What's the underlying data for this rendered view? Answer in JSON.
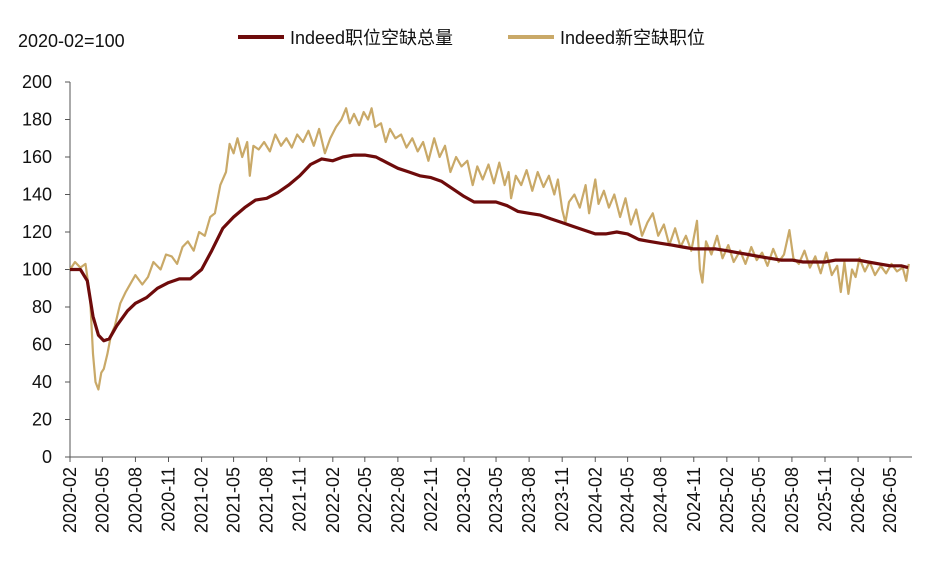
{
  "chart_data": {
    "type": "line",
    "note": "2020-02=100",
    "ylim": [
      0,
      200
    ],
    "yticks": [
      0,
      20,
      40,
      60,
      80,
      100,
      120,
      140,
      160,
      180,
      200
    ],
    "xlim": [
      "2020-02",
      "2026-07"
    ],
    "xtick_labels": [
      "2020-02",
      "2020-05",
      "2020-08",
      "2020-11",
      "2021-02",
      "2021-05",
      "2021-08",
      "2021-11",
      "2022-02",
      "2022-05",
      "2022-08",
      "2022-11",
      "2023-02",
      "2023-05",
      "2023-08",
      "2023-11",
      "2024-02",
      "2024-05",
      "2024-08",
      "2024-11",
      "2025-02",
      "2025-05",
      "2025-08",
      "2025-11",
      "2026-02",
      "2026-05"
    ],
    "grid": false,
    "legend_position": "top",
    "colors": {
      "total": "#6e0b0b",
      "new": "#c9a968"
    },
    "series": [
      {
        "name": "Indeed职位空缺总量",
        "color": "#6e0b0b",
        "points": [
          [
            "2020-02-01",
            100
          ],
          [
            "2020-03-01",
            100
          ],
          [
            "2020-03-20",
            94
          ],
          [
            "2020-04-05",
            75
          ],
          [
            "2020-04-20",
            65
          ],
          [
            "2020-05-05",
            62
          ],
          [
            "2020-05-20",
            63
          ],
          [
            "2020-06-10",
            70
          ],
          [
            "2020-07-10",
            78
          ],
          [
            "2020-08-01",
            82
          ],
          [
            "2020-09-01",
            85
          ],
          [
            "2020-10-01",
            90
          ],
          [
            "2020-11-01",
            93
          ],
          [
            "2020-12-01",
            95
          ],
          [
            "2021-01-01",
            95
          ],
          [
            "2021-02-01",
            100
          ],
          [
            "2021-03-01",
            110
          ],
          [
            "2021-04-01",
            122
          ],
          [
            "2021-05-01",
            128
          ],
          [
            "2021-06-01",
            133
          ],
          [
            "2021-07-01",
            137
          ],
          [
            "2021-08-01",
            138
          ],
          [
            "2021-09-01",
            141
          ],
          [
            "2021-10-01",
            145
          ],
          [
            "2021-11-01",
            150
          ],
          [
            "2021-12-01",
            156
          ],
          [
            "2022-01-01",
            159
          ],
          [
            "2022-02-01",
            158
          ],
          [
            "2022-03-01",
            160
          ],
          [
            "2022-04-01",
            161
          ],
          [
            "2022-05-01",
            161
          ],
          [
            "2022-06-01",
            160
          ],
          [
            "2022-07-01",
            157
          ],
          [
            "2022-08-01",
            154
          ],
          [
            "2022-09-01",
            152
          ],
          [
            "2022-10-01",
            150
          ],
          [
            "2022-11-01",
            149
          ],
          [
            "2022-12-01",
            147
          ],
          [
            "2023-01-01",
            143
          ],
          [
            "2023-02-01",
            139
          ],
          [
            "2023-03-01",
            136
          ],
          [
            "2023-04-01",
            136
          ],
          [
            "2023-05-01",
            136
          ],
          [
            "2023-06-01",
            134
          ],
          [
            "2023-07-01",
            131
          ],
          [
            "2023-08-01",
            130
          ],
          [
            "2023-09-01",
            129
          ],
          [
            "2023-10-01",
            127
          ],
          [
            "2023-11-01",
            125
          ],
          [
            "2023-12-01",
            123
          ],
          [
            "2024-01-01",
            121
          ],
          [
            "2024-02-01",
            119
          ],
          [
            "2024-03-01",
            119
          ],
          [
            "2024-04-01",
            120
          ],
          [
            "2024-05-01",
            119
          ],
          [
            "2024-06-01",
            116
          ],
          [
            "2024-07-01",
            115
          ],
          [
            "2024-08-01",
            114
          ],
          [
            "2024-09-01",
            113
          ],
          [
            "2024-10-01",
            112
          ],
          [
            "2024-11-01",
            111
          ],
          [
            "2024-12-01",
            111
          ],
          [
            "2025-01-01",
            111
          ],
          [
            "2025-02-01",
            110
          ],
          [
            "2025-03-01",
            109
          ],
          [
            "2025-04-01",
            108
          ],
          [
            "2025-05-01",
            107
          ],
          [
            "2025-06-01",
            106
          ],
          [
            "2025-07-01",
            105
          ],
          [
            "2025-08-01",
            105
          ],
          [
            "2025-09-01",
            104
          ],
          [
            "2025-10-01",
            104
          ],
          [
            "2025-11-01",
            104
          ],
          [
            "2025-12-01",
            105
          ],
          [
            "2026-01-01",
            105
          ],
          [
            "2026-02-01",
            105
          ],
          [
            "2026-03-01",
            104
          ],
          [
            "2026-04-01",
            103
          ],
          [
            "2026-05-01",
            102
          ],
          [
            "2026-06-01",
            102
          ],
          [
            "2026-06-20",
            101
          ]
        ]
      },
      {
        "name": "Indeed新空缺职位",
        "color": "#c9a968",
        "points": [
          [
            "2020-02-01",
            100
          ],
          [
            "2020-02-15",
            104
          ],
          [
            "2020-03-01",
            101
          ],
          [
            "2020-03-15",
            103
          ],
          [
            "2020-03-28",
            85
          ],
          [
            "2020-04-05",
            55
          ],
          [
            "2020-04-12",
            40
          ],
          [
            "2020-04-20",
            36
          ],
          [
            "2020-04-28",
            45
          ],
          [
            "2020-05-05",
            47
          ],
          [
            "2020-05-15",
            55
          ],
          [
            "2020-05-25",
            65
          ],
          [
            "2020-06-05",
            70
          ],
          [
            "2020-06-20",
            82
          ],
          [
            "2020-07-05",
            88
          ],
          [
            "2020-07-20",
            93
          ],
          [
            "2020-08-01",
            97
          ],
          [
            "2020-08-20",
            92
          ],
          [
            "2020-09-05",
            96
          ],
          [
            "2020-09-20",
            104
          ],
          [
            "2020-10-10",
            100
          ],
          [
            "2020-10-25",
            108
          ],
          [
            "2020-11-10",
            107
          ],
          [
            "2020-11-25",
            103
          ],
          [
            "2020-12-10",
            112
          ],
          [
            "2020-12-25",
            115
          ],
          [
            "2021-01-10",
            110
          ],
          [
            "2021-01-25",
            120
          ],
          [
            "2021-02-10",
            118
          ],
          [
            "2021-02-25",
            128
          ],
          [
            "2021-03-10",
            130
          ],
          [
            "2021-03-25",
            145
          ],
          [
            "2021-04-10",
            152
          ],
          [
            "2021-04-20",
            167
          ],
          [
            "2021-05-01",
            162
          ],
          [
            "2021-05-12",
            170
          ],
          [
            "2021-05-25",
            160
          ],
          [
            "2021-06-08",
            168
          ],
          [
            "2021-06-15",
            150
          ],
          [
            "2021-06-25",
            166
          ],
          [
            "2021-07-10",
            164
          ],
          [
            "2021-07-25",
            168
          ],
          [
            "2021-08-10",
            163
          ],
          [
            "2021-08-25",
            172
          ],
          [
            "2021-09-10",
            166
          ],
          [
            "2021-09-25",
            170
          ],
          [
            "2021-10-10",
            165
          ],
          [
            "2021-10-25",
            172
          ],
          [
            "2021-11-10",
            168
          ],
          [
            "2021-11-25",
            174
          ],
          [
            "2021-12-10",
            166
          ],
          [
            "2021-12-25",
            175
          ],
          [
            "2022-01-10",
            162
          ],
          [
            "2022-01-25",
            170
          ],
          [
            "2022-02-10",
            176
          ],
          [
            "2022-02-25",
            180
          ],
          [
            "2022-03-10",
            186
          ],
          [
            "2022-03-20",
            178
          ],
          [
            "2022-04-01",
            183
          ],
          [
            "2022-04-15",
            177
          ],
          [
            "2022-04-28",
            184
          ],
          [
            "2022-05-10",
            180
          ],
          [
            "2022-05-20",
            186
          ],
          [
            "2022-05-30",
            176
          ],
          [
            "2022-06-15",
            178
          ],
          [
            "2022-06-28",
            168
          ],
          [
            "2022-07-10",
            175
          ],
          [
            "2022-07-25",
            170
          ],
          [
            "2022-08-10",
            172
          ],
          [
            "2022-08-25",
            165
          ],
          [
            "2022-09-10",
            170
          ],
          [
            "2022-09-25",
            163
          ],
          [
            "2022-10-10",
            168
          ],
          [
            "2022-10-25",
            158
          ],
          [
            "2022-11-10",
            170
          ],
          [
            "2022-11-25",
            160
          ],
          [
            "2022-12-10",
            166
          ],
          [
            "2022-12-25",
            152
          ],
          [
            "2023-01-10",
            160
          ],
          [
            "2023-01-25",
            155
          ],
          [
            "2023-02-10",
            158
          ],
          [
            "2023-02-25",
            145
          ],
          [
            "2023-03-10",
            155
          ],
          [
            "2023-03-25",
            148
          ],
          [
            "2023-04-10",
            156
          ],
          [
            "2023-04-25",
            146
          ],
          [
            "2023-05-10",
            157
          ],
          [
            "2023-05-25",
            145
          ],
          [
            "2023-06-05",
            152
          ],
          [
            "2023-06-12",
            138
          ],
          [
            "2023-06-25",
            150
          ],
          [
            "2023-07-10",
            145
          ],
          [
            "2023-07-25",
            153
          ],
          [
            "2023-08-10",
            142
          ],
          [
            "2023-08-25",
            152
          ],
          [
            "2023-09-10",
            144
          ],
          [
            "2023-09-25",
            150
          ],
          [
            "2023-10-10",
            140
          ],
          [
            "2023-10-20",
            148
          ],
          [
            "2023-11-01",
            132
          ],
          [
            "2023-11-10",
            125
          ],
          [
            "2023-11-20",
            136
          ],
          [
            "2023-12-05",
            140
          ],
          [
            "2023-12-20",
            133
          ],
          [
            "2024-01-05",
            145
          ],
          [
            "2024-01-15",
            130
          ],
          [
            "2024-02-01",
            148
          ],
          [
            "2024-02-10",
            135
          ],
          [
            "2024-02-25",
            142
          ],
          [
            "2024-03-10",
            133
          ],
          [
            "2024-03-25",
            140
          ],
          [
            "2024-04-10",
            128
          ],
          [
            "2024-04-25",
            138
          ],
          [
            "2024-05-10",
            124
          ],
          [
            "2024-05-25",
            132
          ],
          [
            "2024-06-10",
            118
          ],
          [
            "2024-06-25",
            125
          ],
          [
            "2024-07-10",
            130
          ],
          [
            "2024-07-25",
            118
          ],
          [
            "2024-08-10",
            124
          ],
          [
            "2024-08-25",
            113
          ],
          [
            "2024-09-10",
            122
          ],
          [
            "2024-09-25",
            112
          ],
          [
            "2024-10-10",
            118
          ],
          [
            "2024-10-25",
            110
          ],
          [
            "2024-11-10",
            126
          ],
          [
            "2024-11-18",
            100
          ],
          [
            "2024-11-25",
            93
          ],
          [
            "2024-12-05",
            115
          ],
          [
            "2024-12-20",
            108
          ],
          [
            "2025-01-05",
            118
          ],
          [
            "2025-01-20",
            106
          ],
          [
            "2025-02-05",
            113
          ],
          [
            "2025-02-20",
            104
          ],
          [
            "2025-03-10",
            110
          ],
          [
            "2025-03-25",
            103
          ],
          [
            "2025-04-10",
            112
          ],
          [
            "2025-04-25",
            105
          ],
          [
            "2025-05-10",
            109
          ],
          [
            "2025-05-25",
            102
          ],
          [
            "2025-06-10",
            111
          ],
          [
            "2025-06-25",
            104
          ],
          [
            "2025-07-10",
            108
          ],
          [
            "2025-07-25",
            121
          ],
          [
            "2025-08-05",
            106
          ],
          [
            "2025-08-20",
            103
          ],
          [
            "2025-09-05",
            110
          ],
          [
            "2025-09-20",
            101
          ],
          [
            "2025-10-05",
            107
          ],
          [
            "2025-10-20",
            98
          ],
          [
            "2025-11-05",
            109
          ],
          [
            "2025-11-20",
            97
          ],
          [
            "2025-12-05",
            102
          ],
          [
            "2025-12-15",
            88
          ],
          [
            "2025-12-25",
            104
          ],
          [
            "2026-01-05",
            87
          ],
          [
            "2026-01-15",
            100
          ],
          [
            "2026-01-25",
            96
          ],
          [
            "2026-02-05",
            106
          ],
          [
            "2026-02-20",
            99
          ],
          [
            "2026-03-05",
            104
          ],
          [
            "2026-03-20",
            97
          ],
          [
            "2026-04-05",
            102
          ],
          [
            "2026-04-20",
            98
          ],
          [
            "2026-05-05",
            103
          ],
          [
            "2026-05-20",
            99
          ],
          [
            "2026-06-05",
            101
          ],
          [
            "2026-06-15",
            94
          ],
          [
            "2026-06-22",
            103
          ]
        ]
      }
    ]
  }
}
